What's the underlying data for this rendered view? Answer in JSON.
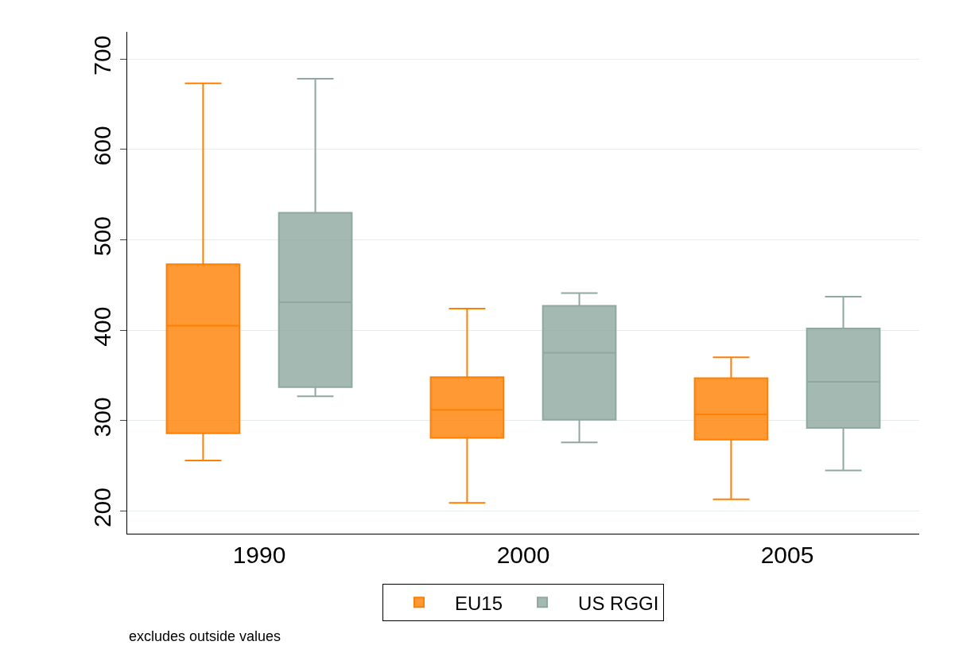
{
  "chart_data": {
    "type": "box",
    "categories": [
      "1990",
      "2000",
      "2005"
    ],
    "ylim": [
      175,
      730
    ],
    "yticks": [
      200,
      300,
      400,
      500,
      600,
      700
    ],
    "grid": "y",
    "legend": "bottom",
    "series": [
      {
        "name": "EU15",
        "color": "#ff7f00",
        "boxes": [
          {
            "low": 256,
            "q1": 286,
            "median": 405,
            "q3": 473,
            "high": 673
          },
          {
            "low": 209,
            "q1": 281,
            "median": 312,
            "q3": 348,
            "high": 424
          },
          {
            "low": 213,
            "q1": 279,
            "median": 307,
            "q3": 347,
            "high": 370
          }
        ]
      },
      {
        "name": "US RGGI",
        "color": "#8fa8a0",
        "boxes": [
          {
            "low": 327,
            "q1": 337,
            "median": 431,
            "q3": 530,
            "high": 678
          },
          {
            "low": 276,
            "q1": 301,
            "median": 375,
            "q3": 427,
            "high": 441
          },
          {
            "low": 245,
            "q1": 292,
            "median": 343,
            "q3": 402,
            "high": 437
          }
        ]
      }
    ],
    "annotations": [
      "excludes outside values"
    ]
  }
}
